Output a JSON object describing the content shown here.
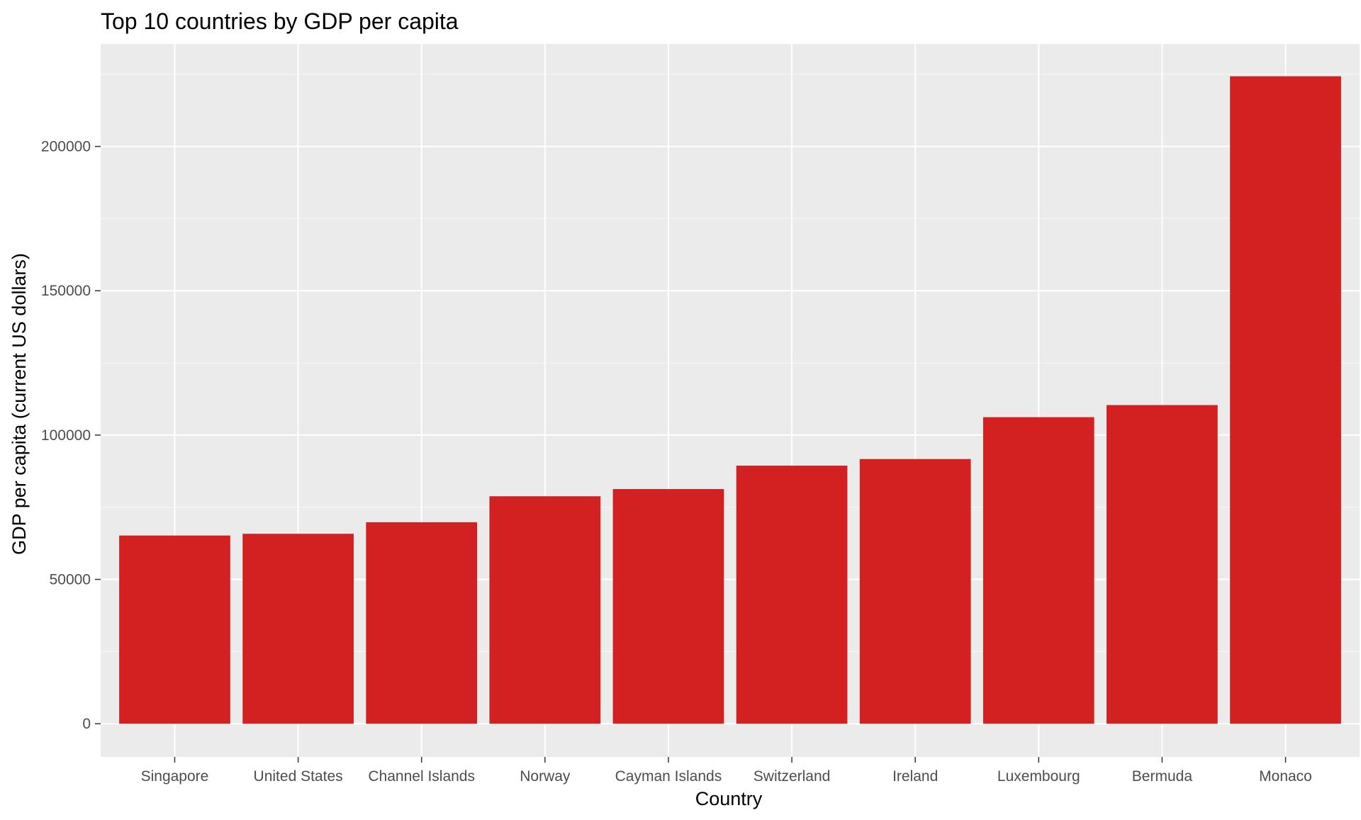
{
  "chart_data": {
    "type": "bar",
    "title": "Top 10 countries by GDP per capita",
    "xlabel": "Country",
    "ylabel": "GDP per capita (current US dollars)",
    "categories": [
      "Singapore",
      "United States",
      "Channel Islands",
      "Norway",
      "Cayman Islands",
      "Switzerland",
      "Ireland",
      "Luxembourg",
      "Bermuda",
      "Monaco"
    ],
    "values": [
      65200,
      65800,
      69800,
      78800,
      81300,
      89400,
      91700,
      106200,
      110400,
      224300
    ],
    "ylim": [
      -11500,
      235500
    ],
    "yticks": [
      0,
      50000,
      100000,
      150000,
      200000
    ],
    "ytick_labels": [
      "0",
      "50000",
      "100000",
      "150000",
      "200000"
    ],
    "grid": true,
    "legend": "none",
    "colors": {
      "bar": "#D32121",
      "panel_background": "#EBEBEB",
      "grid_major": "#FFFFFF",
      "grid_minor": "#F5F5F5",
      "tick_text": "#4D4D4D",
      "tick_mark": "#333333"
    }
  }
}
